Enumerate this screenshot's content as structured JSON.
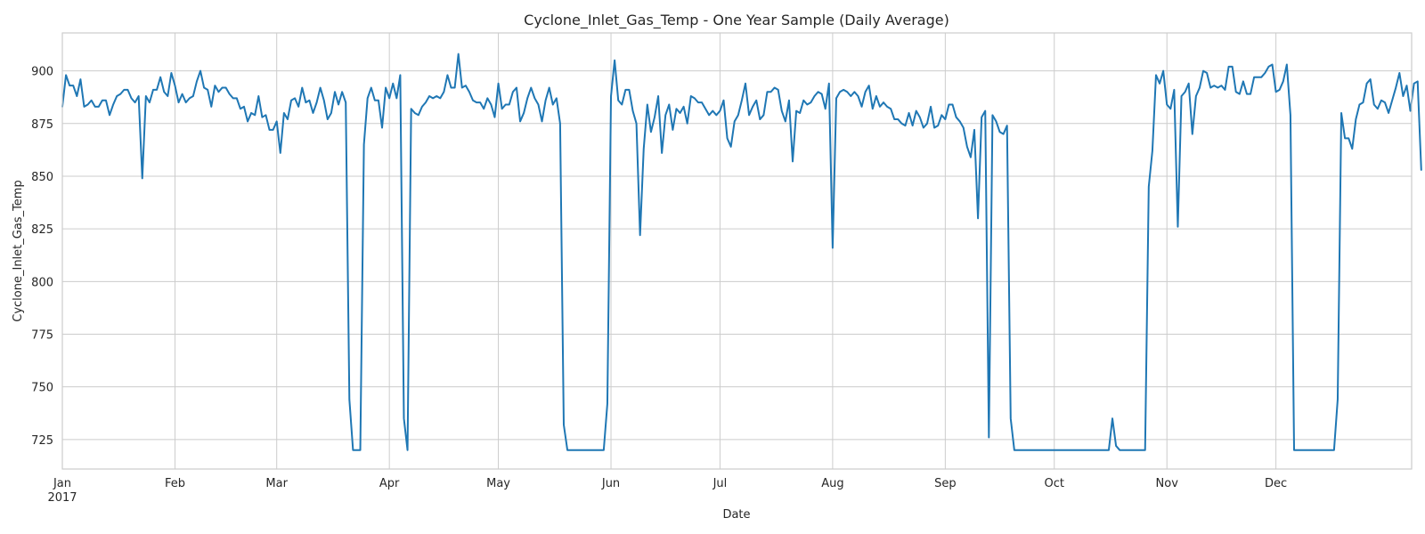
{
  "chart_data": {
    "type": "line",
    "title": "Cyclone_Inlet_Gas_Temp - One Year Sample (Daily Average)",
    "xlabel": "Date",
    "ylabel": "Cyclone_Inlet_Gas_Temp",
    "x_start": "2017-01-01",
    "xlim": [
      "2017-01-01",
      "2017-12-31"
    ],
    "ylim": [
      711,
      918
    ],
    "year_label": "2017",
    "x_ticks": [
      {
        "date": "2017-01-01",
        "label": "Jan"
      },
      {
        "date": "2017-02-01",
        "label": "Feb"
      },
      {
        "date": "2017-03-01",
        "label": "Mar"
      },
      {
        "date": "2017-04-01",
        "label": "Apr"
      },
      {
        "date": "2017-05-01",
        "label": "May"
      },
      {
        "date": "2017-06-01",
        "label": "Jun"
      },
      {
        "date": "2017-07-01",
        "label": "Jul"
      },
      {
        "date": "2017-08-01",
        "label": "Aug"
      },
      {
        "date": "2017-09-01",
        "label": "Sep"
      },
      {
        "date": "2017-10-01",
        "label": "Oct"
      },
      {
        "date": "2017-11-01",
        "label": "Nov"
      },
      {
        "date": "2017-12-01",
        "label": "Dec"
      }
    ],
    "y_ticks": [
      725,
      750,
      775,
      800,
      825,
      850,
      875,
      900
    ],
    "grid": true,
    "legend": "none",
    "color": "#1f77b4",
    "series": [
      {
        "values": [
          883,
          898,
          893,
          893,
          888,
          896,
          883,
          884,
          886,
          883,
          883,
          886,
          886,
          879,
          884,
          888,
          889,
          891,
          891,
          887,
          885,
          888,
          849,
          888,
          885,
          891,
          891,
          897,
          890,
          888,
          899,
          893,
          885,
          889,
          885,
          887,
          888,
          895,
          900,
          892,
          891,
          883,
          893,
          890,
          892,
          892,
          889,
          887,
          887,
          882,
          883,
          876,
          880,
          879,
          888,
          878,
          879,
          872,
          872,
          876,
          861,
          880,
          877,
          886,
          887,
          883,
          892,
          885,
          886,
          880,
          885,
          892,
          886,
          877,
          880,
          890,
          884,
          890,
          885,
          744,
          720,
          720,
          720,
          865,
          887,
          892,
          886,
          886,
          873,
          892,
          887,
          894,
          887,
          898,
          735,
          720,
          882,
          880,
          879,
          883,
          885,
          888,
          887,
          888,
          887,
          890,
          898,
          892,
          892,
          908,
          892,
          893,
          890,
          886,
          885,
          885,
          882,
          887,
          884,
          878,
          894,
          882,
          884,
          884,
          890,
          892,
          876,
          880,
          887,
          892,
          887,
          884,
          876,
          886,
          892,
          884,
          887,
          875,
          732,
          720,
          720,
          720,
          720,
          720,
          720,
          720,
          720,
          720,
          720,
          720,
          742,
          888,
          905,
          886,
          884,
          891,
          891,
          881,
          875,
          822,
          863,
          884,
          871,
          878,
          888,
          861,
          879,
          884,
          872,
          882,
          880,
          883,
          875,
          888,
          887,
          885,
          885,
          882,
          879,
          881,
          879,
          881,
          886,
          868,
          864,
          876,
          879,
          886,
          894,
          879,
          883,
          886,
          877,
          879,
          890,
          890,
          892,
          891,
          881,
          876,
          886,
          857,
          881,
          880,
          886,
          884,
          885,
          888,
          890,
          889,
          882,
          894,
          816,
          887,
          890,
          891,
          890,
          888,
          890,
          888,
          883,
          890,
          893,
          882,
          888,
          883,
          885,
          883,
          882,
          877,
          877,
          875,
          874,
          880,
          874,
          881,
          878,
          873,
          875,
          883,
          873,
          874,
          879,
          877,
          884,
          884,
          878,
          876,
          873,
          864,
          859,
          872,
          830,
          878,
          881,
          726,
          879,
          876,
          871,
          870,
          874,
          735,
          720,
          720,
          720,
          720,
          720,
          720,
          720,
          720,
          720,
          720,
          720,
          720,
          720,
          720,
          720,
          720,
          720,
          720,
          720,
          720,
          720,
          720,
          720,
          720,
          720,
          720,
          720,
          735,
          722,
          720,
          720,
          720,
          720,
          720,
          720,
          720,
          720,
          845,
          862,
          898,
          894,
          900,
          884,
          882,
          891,
          826,
          888,
          890,
          894,
          870,
          888,
          892,
          900,
          899,
          892,
          893,
          892,
          893,
          891,
          902,
          902,
          890,
          889,
          895,
          889,
          889,
          897,
          897,
          897,
          899,
          902,
          903,
          890,
          891,
          895,
          903,
          879,
          720,
          720,
          720,
          720,
          720,
          720,
          720,
          720,
          720,
          720,
          720,
          720,
          744,
          880,
          868,
          868,
          863,
          877,
          884,
          885,
          894,
          896,
          884,
          882,
          886,
          885,
          880,
          886,
          892,
          899,
          888,
          893,
          881,
          894,
          895,
          853
        ]
      }
    ]
  }
}
